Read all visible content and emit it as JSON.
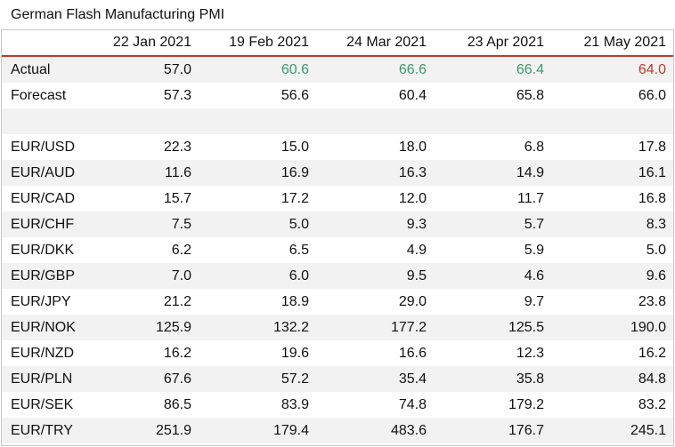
{
  "title": "German Flash Manufacturing PMI",
  "headers": [
    "",
    "22 Jan 2021",
    "19 Feb 2021",
    "24 Mar 2021",
    "23 Apr 2021",
    "21 May 2021"
  ],
  "colors": {
    "green": "#3c9a6b",
    "red": "#c0392b",
    "header_rule": "#c0392b",
    "stripe": "#f2f2f2"
  },
  "rows": [
    {
      "label": "Actual",
      "values": [
        "57.0",
        "60.6",
        "66.6",
        "66.4",
        "64.0"
      ],
      "colors": [
        "",
        "green",
        "green",
        "green",
        "red"
      ]
    },
    {
      "label": "Forecast",
      "values": [
        "57.3",
        "56.6",
        "60.4",
        "65.8",
        "66.0"
      ]
    },
    {
      "label": "",
      "values": [
        "",
        "",
        "",
        "",
        ""
      ]
    },
    {
      "label": "EUR/USD",
      "values": [
        "22.3",
        "15.0",
        "18.0",
        "6.8",
        "17.8"
      ]
    },
    {
      "label": "EUR/AUD",
      "values": [
        "11.6",
        "16.9",
        "16.3",
        "14.9",
        "16.1"
      ]
    },
    {
      "label": "EUR/CAD",
      "values": [
        "15.7",
        "17.2",
        "12.0",
        "11.7",
        "16.8"
      ]
    },
    {
      "label": "EUR/CHF",
      "values": [
        "7.5",
        "5.0",
        "9.3",
        "5.7",
        "8.3"
      ]
    },
    {
      "label": "EUR/DKK",
      "values": [
        "6.2",
        "6.5",
        "4.9",
        "5.9",
        "5.0"
      ]
    },
    {
      "label": "EUR/GBP",
      "values": [
        "7.0",
        "6.0",
        "9.5",
        "4.6",
        "9.6"
      ]
    },
    {
      "label": "EUR/JPY",
      "values": [
        "21.2",
        "18.9",
        "29.0",
        "9.7",
        "23.8"
      ]
    },
    {
      "label": "EUR/NOK",
      "values": [
        "125.9",
        "132.2",
        "177.2",
        "125.5",
        "190.0"
      ]
    },
    {
      "label": "EUR/NZD",
      "values": [
        "16.2",
        "19.6",
        "16.6",
        "12.3",
        "16.2"
      ]
    },
    {
      "label": "EUR/PLN",
      "values": [
        "67.6",
        "57.2",
        "35.4",
        "35.8",
        "84.8"
      ]
    },
    {
      "label": "EUR/SEK",
      "values": [
        "86.5",
        "83.9",
        "74.8",
        "179.2",
        "83.2"
      ]
    },
    {
      "label": "EUR/TRY",
      "values": [
        "251.9",
        "179.4",
        "483.6",
        "176.7",
        "245.1"
      ]
    }
  ]
}
